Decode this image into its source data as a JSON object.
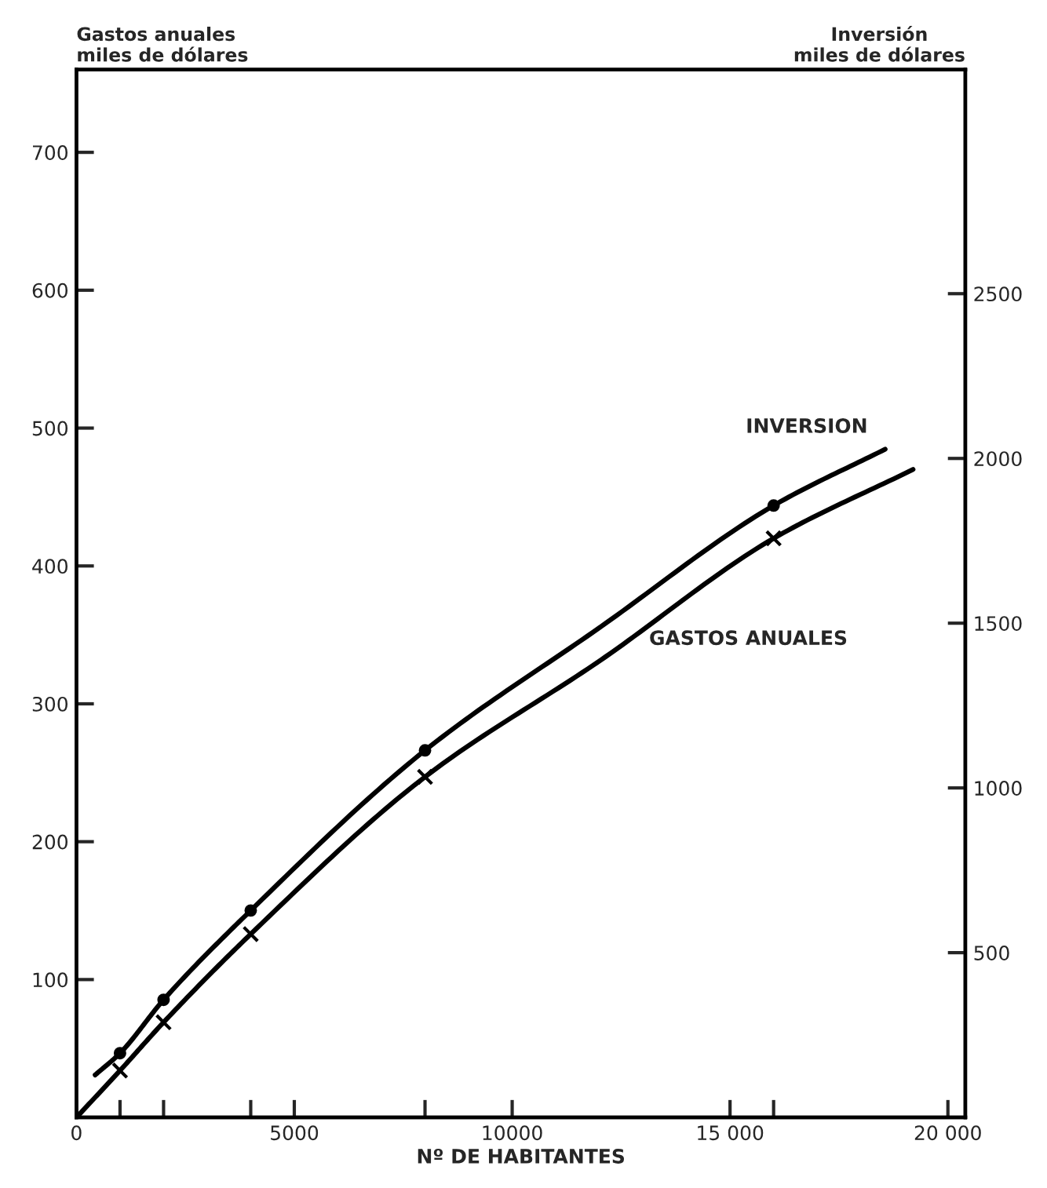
{
  "chart_data": {
    "type": "line",
    "xlabel": "Nº DE HABITANTES",
    "ylabel": "Gastos anuales\nmiles de dólares",
    "y2label": "Inversión\nmiles de dólares",
    "xlim": [
      0,
      20400
    ],
    "ylim": [
      0,
      760
    ],
    "y2lim": [
      0,
      3180
    ],
    "xticks": [
      0,
      {
        "value": 1000,
        "label": null
      },
      {
        "value": 2000,
        "label": null
      },
      {
        "value": 4000,
        "label": null
      },
      5000,
      {
        "value": 8000,
        "label": null
      },
      10000,
      {
        "value": 15000,
        "label": "15 000"
      },
      {
        "value": 16000,
        "label": null
      },
      {
        "value": 20000,
        "label": "20 000"
      }
    ],
    "yticks": [
      100,
      200,
      300,
      400,
      500,
      600,
      700
    ],
    "y2ticks": [
      500,
      1000,
      1500,
      2000,
      2500
    ],
    "grid": false,
    "legend": false,
    "line_style": "solid",
    "series": [
      {
        "name": "INVERSION",
        "axis": "y2",
        "color": "#000000",
        "marker": "none",
        "x": [
          430,
          1000,
          2000,
          4000,
          8000,
          12000,
          16000,
          18560
        ],
        "values": [
          129,
          195,
          357,
          628,
          1114,
          1486,
          1857,
          2028
        ]
      },
      {
        "name": "GASTOS ANUALES",
        "axis": "y",
        "color": "#000000",
        "marker": "none",
        "x": [
          0,
          1000,
          2000,
          4000,
          8000,
          12000,
          16000,
          19200
        ],
        "values": [
          0,
          34,
          69,
          133,
          247,
          331,
          420,
          470
        ]
      },
      {
        "type": "scatter",
        "axis": "y2",
        "color": "#000000",
        "marker": "circle",
        "x": [
          1000,
          2000,
          4000,
          8000,
          16000
        ],
        "values": [
          195,
          357,
          628,
          1114,
          1857
        ]
      },
      {
        "type": "scatter",
        "axis": "y",
        "color": "#000000",
        "marker": "cross",
        "x": [
          1000,
          2000,
          4000,
          8000,
          16000
        ],
        "values": [
          34,
          69,
          133,
          247,
          420
        ]
      }
    ]
  }
}
